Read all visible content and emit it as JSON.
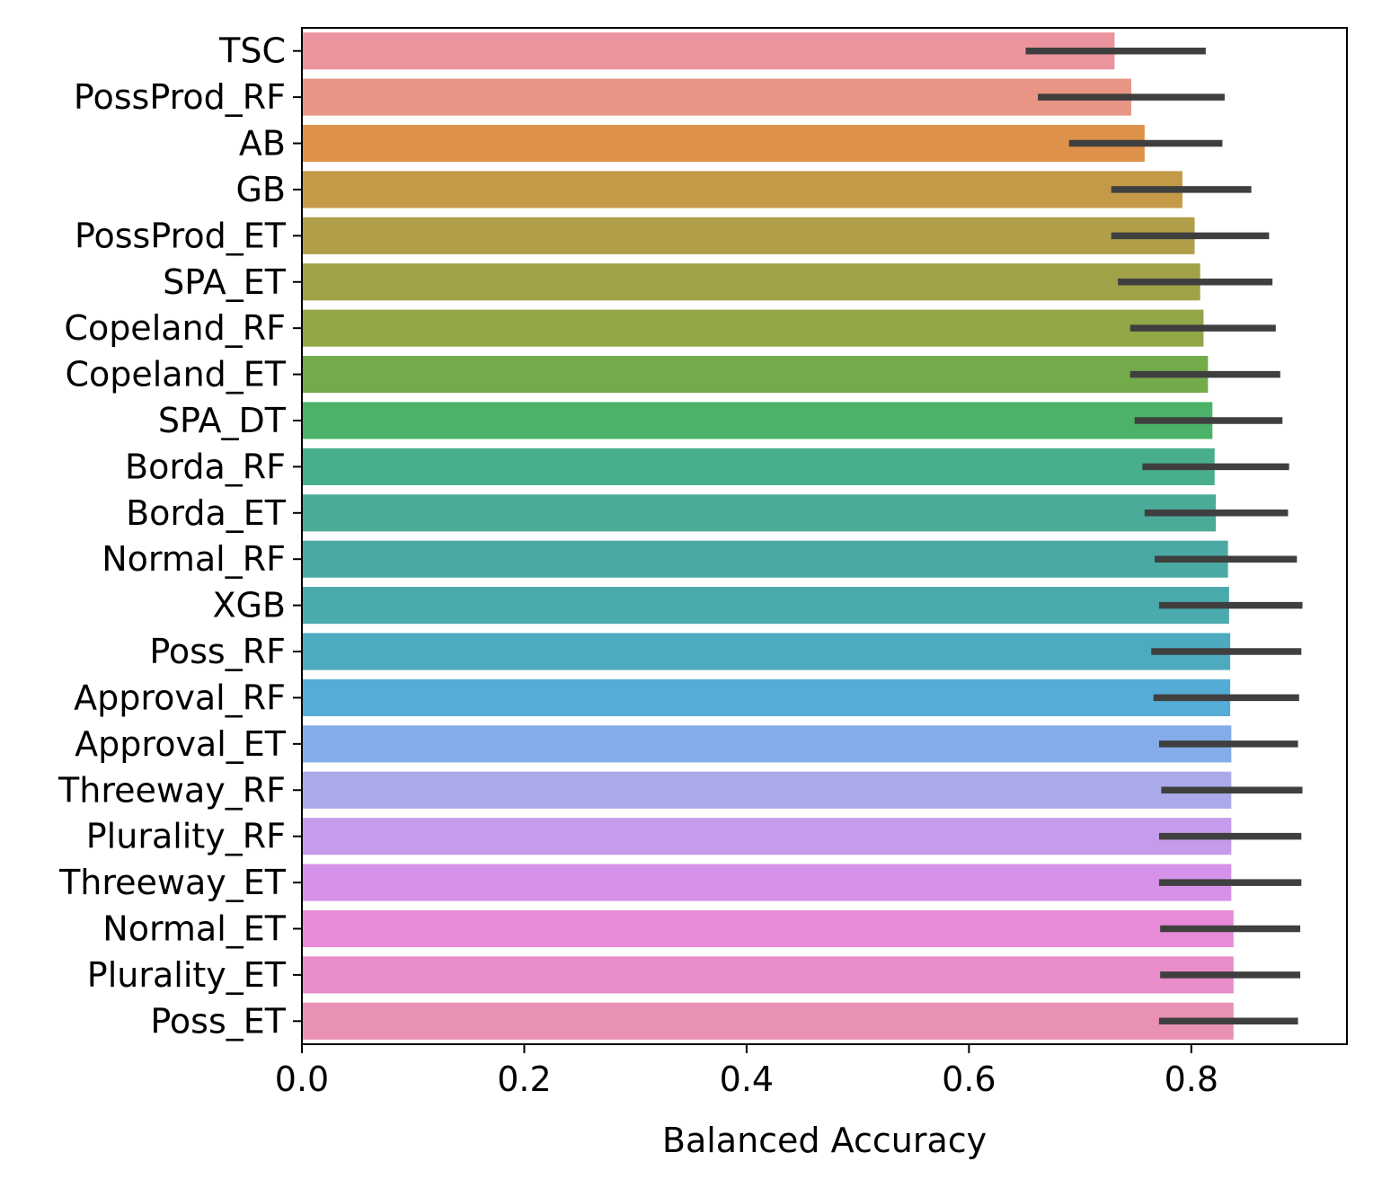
{
  "chart_data": {
    "type": "bar",
    "orientation": "horizontal",
    "title": "",
    "xlabel": "Balanced Accuracy",
    "ylabel": "",
    "xlim": [
      0.0,
      0.94
    ],
    "xticks": [
      0.0,
      0.2,
      0.4,
      0.6,
      0.8
    ],
    "xtick_labels": [
      "0.0",
      "0.2",
      "0.4",
      "0.6",
      "0.8"
    ],
    "grid": false,
    "legend": "none",
    "error_bar_color": "#3f3f3f",
    "categories": [
      "TSC",
      "PossProd_RF",
      "AB",
      "GB",
      "PossProd_ET",
      "SPA_ET",
      "Copeland_RF",
      "Copeland_ET",
      "SPA_DT",
      "Borda_RF",
      "Borda_ET",
      "Normal_RF",
      "XGB",
      "Poss_RF",
      "Approval_RF",
      "Approval_ET",
      "Threeway_RF",
      "Plurality_RF",
      "Threeway_ET",
      "Normal_ET",
      "Plurality_ET",
      "Poss_ET"
    ],
    "values": [
      0.731,
      0.746,
      0.758,
      0.792,
      0.803,
      0.808,
      0.811,
      0.815,
      0.819,
      0.821,
      0.822,
      0.833,
      0.834,
      0.835,
      0.835,
      0.836,
      0.836,
      0.836,
      0.836,
      0.838,
      0.838,
      0.838
    ],
    "ci_low": [
      0.651,
      0.662,
      0.69,
      0.728,
      0.728,
      0.734,
      0.745,
      0.745,
      0.749,
      0.756,
      0.758,
      0.767,
      0.771,
      0.764,
      0.766,
      0.771,
      0.773,
      0.771,
      0.771,
      0.772,
      0.772,
      0.771
    ],
    "ci_high": [
      0.813,
      0.83,
      0.828,
      0.854,
      0.87,
      0.873,
      0.876,
      0.88,
      0.882,
      0.888,
      0.887,
      0.895,
      0.9,
      0.899,
      0.897,
      0.896,
      0.9,
      0.899,
      0.899,
      0.898,
      0.898,
      0.896
    ],
    "colors": [
      "#eb949e",
      "#e99585",
      "#de9249",
      "#c49a49",
      "#b19e48",
      "#a1a148",
      "#92a747",
      "#73ab4a",
      "#4bb268",
      "#49ae8a",
      "#4aab99",
      "#4aaaa3",
      "#4baaae",
      "#4daabf",
      "#55acd6",
      "#85acea",
      "#aaaaeb",
      "#c49ceb",
      "#d592e8",
      "#e88ad9",
      "#e88dca",
      "#e991b5"
    ]
  }
}
